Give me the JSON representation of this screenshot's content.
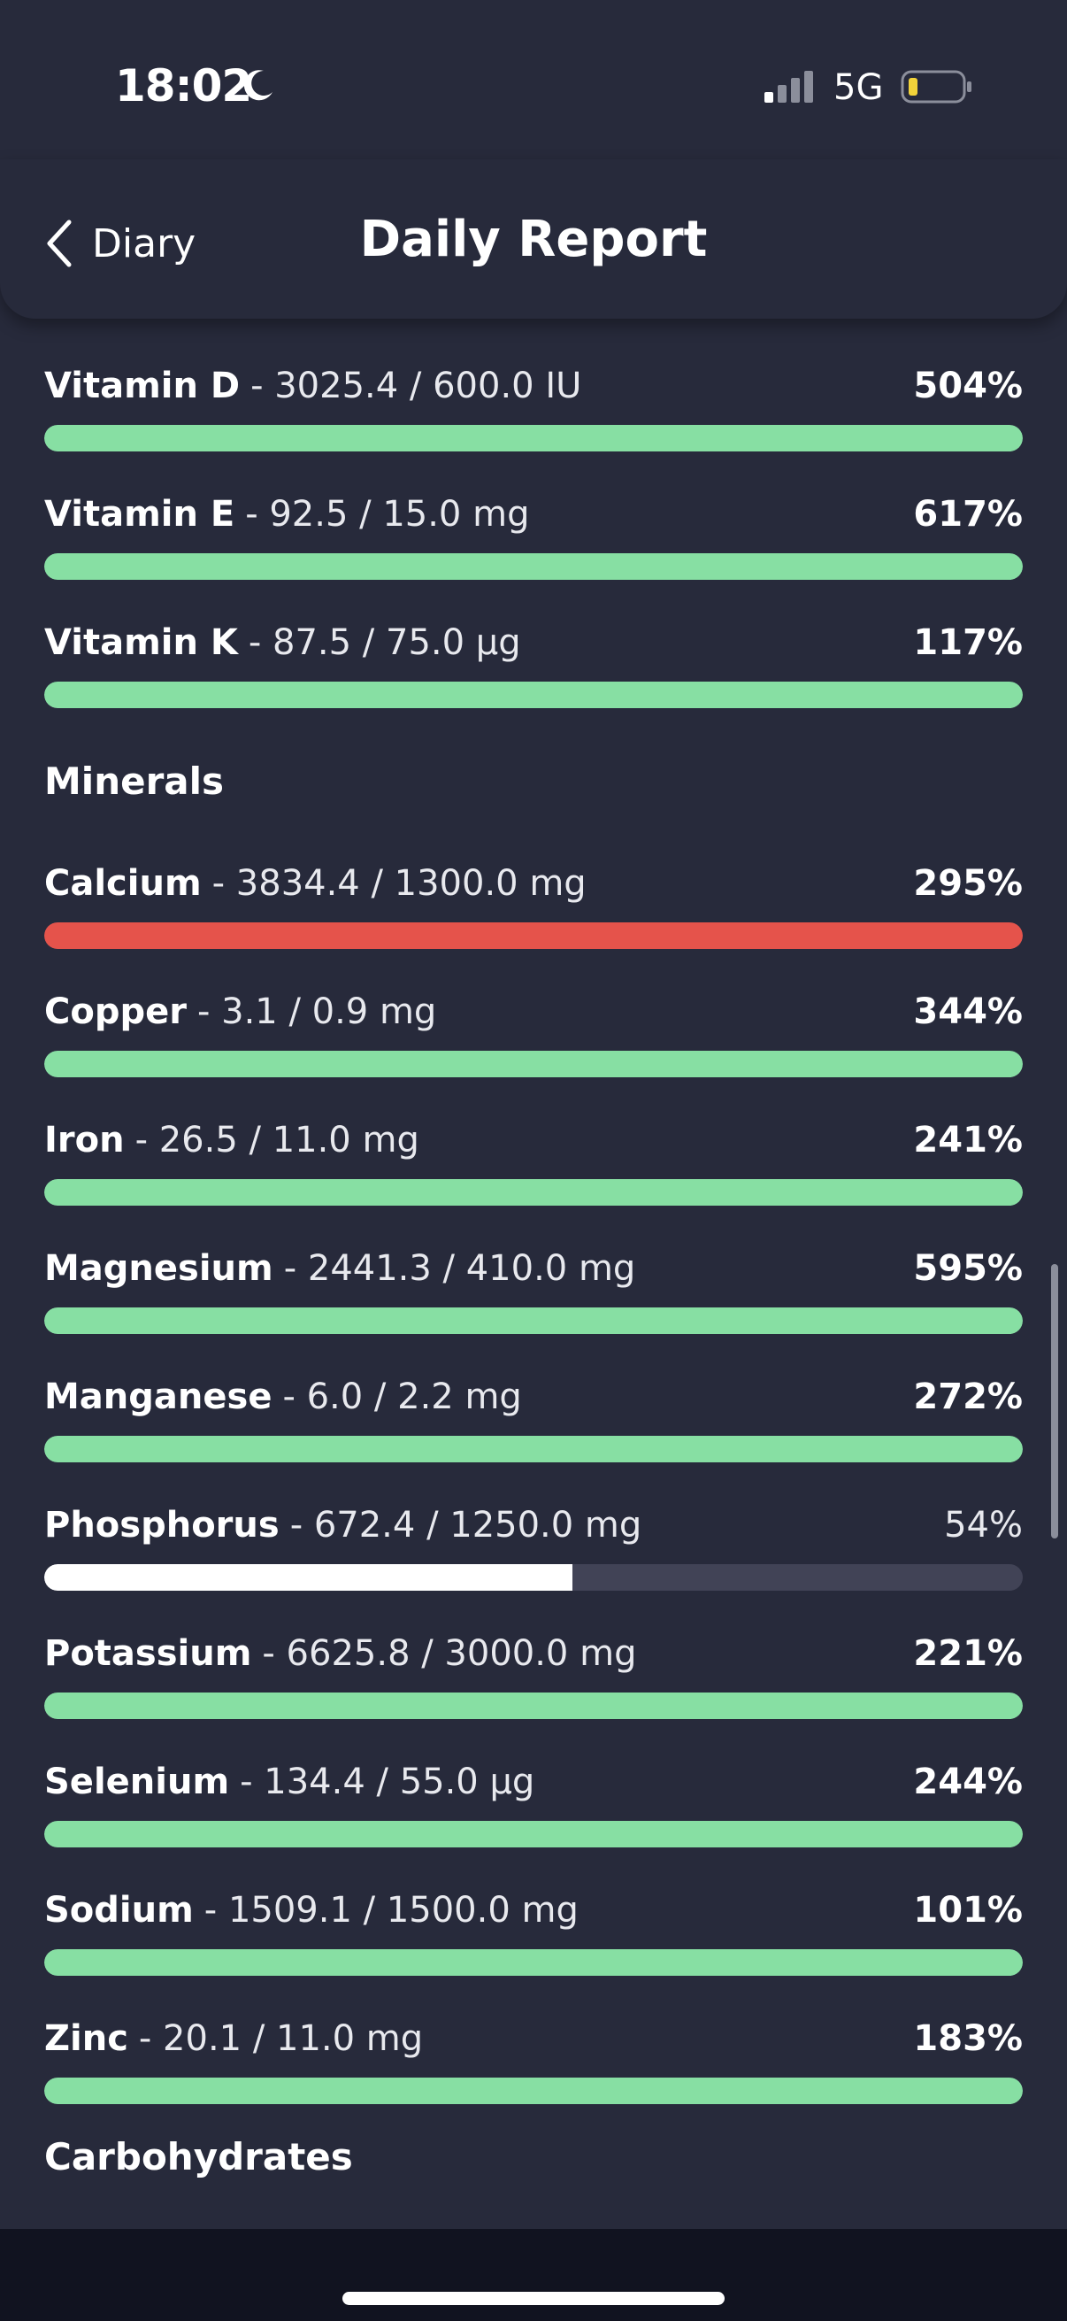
{
  "status": {
    "time": "18:02",
    "network": "5G"
  },
  "nav": {
    "back_label": "Diary",
    "title": "Daily Report"
  },
  "sections": {
    "minerals": "Minerals",
    "carbohydrates": "Carbohydrates"
  },
  "nutrients": [
    {
      "name": "Vitamin D",
      "detail": "- 3025.4 / 600.0 IU",
      "percent": "504%",
      "fill": 1.0,
      "status": "over"
    },
    {
      "name": "Vitamin E",
      "detail": "- 92.5 / 15.0 mg",
      "percent": "617%",
      "fill": 1.0,
      "status": "over"
    },
    {
      "name": "Vitamin K",
      "detail": "- 87.5 / 75.0 µg",
      "percent": "117%",
      "fill": 1.0,
      "status": "over"
    },
    {
      "name": "Calcium",
      "detail": "- 3834.4 / 1300.0 mg",
      "percent": "295%",
      "fill": 1.0,
      "status": "warning"
    },
    {
      "name": "Copper",
      "detail": "- 3.1 / 0.9 mg",
      "percent": "344%",
      "fill": 1.0,
      "status": "over"
    },
    {
      "name": "Iron",
      "detail": "- 26.5 / 11.0 mg",
      "percent": "241%",
      "fill": 1.0,
      "status": "over"
    },
    {
      "name": "Magnesium",
      "detail": "- 2441.3 / 410.0 mg",
      "percent": "595%",
      "fill": 1.0,
      "status": "over"
    },
    {
      "name": "Manganese",
      "detail": "- 6.0 / 2.2 mg",
      "percent": "272%",
      "fill": 1.0,
      "status": "over"
    },
    {
      "name": "Phosphorus",
      "detail": "- 672.4 / 1250.0 mg",
      "percent": "54%",
      "fill": 0.54,
      "status": "under"
    },
    {
      "name": "Potassium",
      "detail": "- 6625.8 / 3000.0 mg",
      "percent": "221%",
      "fill": 1.0,
      "status": "over"
    },
    {
      "name": "Selenium",
      "detail": "- 134.4 / 55.0 µg",
      "percent": "244%",
      "fill": 1.0,
      "status": "over"
    },
    {
      "name": "Sodium",
      "detail": "- 1509.1 / 1500.0 mg",
      "percent": "101%",
      "fill": 1.0,
      "status": "over"
    },
    {
      "name": "Zinc",
      "detail": "- 20.1 / 11.0 mg",
      "percent": "183%",
      "fill": 1.0,
      "status": "over"
    }
  ],
  "colors": {
    "over": "#87dfa3",
    "warning": "#e5534b",
    "under": "#ffffff",
    "track": "#414356",
    "background": "#272a3b"
  },
  "icons": {
    "back": "chevron-left-icon",
    "moon": "moon-icon",
    "signal": "signal-icon",
    "battery": "battery-icon"
  }
}
